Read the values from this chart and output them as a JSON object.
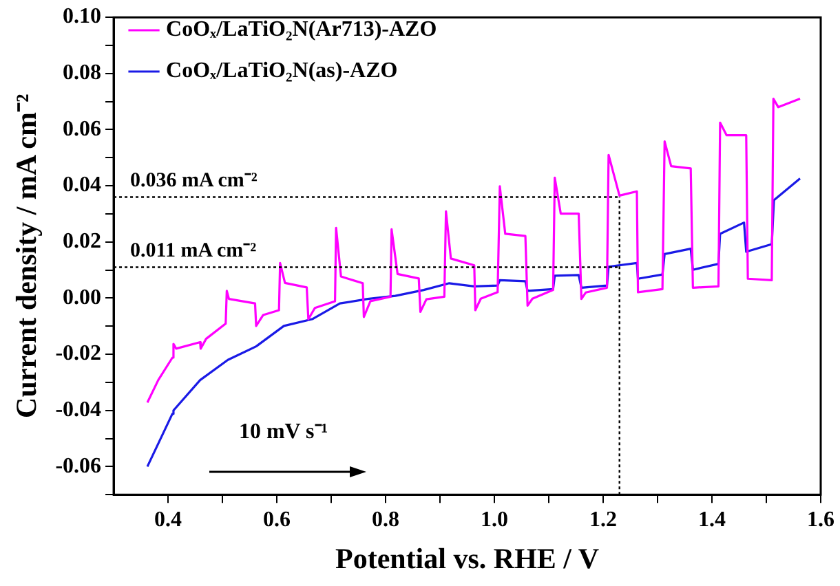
{
  "chart_data": {
    "type": "line",
    "xlabel": "Potential vs. RHE / V",
    "ylabel": "Current density / mA cm⁻²",
    "xlim": [
      0.3,
      1.6
    ],
    "ylim": [
      -0.07,
      0.1
    ],
    "xticks": [
      {
        "value": 0.4,
        "label": "0.4"
      },
      {
        "value": 0.5,
        "label": null
      },
      {
        "value": 0.6,
        "label": "0.6"
      },
      {
        "value": 0.7,
        "label": null
      },
      {
        "value": 0.8,
        "label": "0.8"
      },
      {
        "value": 0.9,
        "label": null
      },
      {
        "value": 1.0,
        "label": "1.0"
      },
      {
        "value": 1.1,
        "label": null
      },
      {
        "value": 1.2,
        "label": "1.2"
      },
      {
        "value": 1.3,
        "label": null
      },
      {
        "value": 1.4,
        "label": "1.4"
      },
      {
        "value": 1.5,
        "label": null
      },
      {
        "value": 1.6,
        "label": "1.6"
      }
    ],
    "yticks": [
      {
        "value": -0.07,
        "label": null
      },
      {
        "value": -0.06,
        "label": "-0.06"
      },
      {
        "value": -0.05,
        "label": null
      },
      {
        "value": -0.04,
        "label": "-0.04"
      },
      {
        "value": -0.03,
        "label": null
      },
      {
        "value": -0.02,
        "label": "-0.02"
      },
      {
        "value": -0.01,
        "label": null
      },
      {
        "value": 0,
        "label": "0.00"
      },
      {
        "value": 0.01,
        "label": null
      },
      {
        "value": 0.02,
        "label": "0.02"
      },
      {
        "value": 0.03,
        "label": null
      },
      {
        "value": 0.04,
        "label": "0.04"
      },
      {
        "value": 0.05,
        "label": null
      },
      {
        "value": 0.06,
        "label": "0.06"
      },
      {
        "value": 0.07,
        "label": null
      },
      {
        "value": 0.08,
        "label": "0.08"
      },
      {
        "value": 0.09,
        "label": null
      },
      {
        "value": 0.1,
        "label": "0.10"
      }
    ],
    "grid": false,
    "legend": "top left",
    "line_style": "solid",
    "series": [
      {
        "name": "CoOₓ/LaTiO₂N(Ar713)-AZO",
        "color": "#ff00ff",
        "x": [
          0.362,
          0.382,
          0.408,
          0.41,
          0.415,
          0.459,
          0.46,
          0.47,
          0.506,
          0.508,
          0.512,
          0.56,
          0.562,
          0.575,
          0.604,
          0.606,
          0.615,
          0.655,
          0.658,
          0.67,
          0.707,
          0.709,
          0.718,
          0.758,
          0.76,
          0.772,
          0.809,
          0.811,
          0.822,
          0.861,
          0.864,
          0.875,
          0.908,
          0.911,
          0.92,
          0.963,
          0.965,
          0.975,
          1.006,
          1.01,
          1.02,
          1.057,
          1.061,
          1.07,
          1.108,
          1.111,
          1.122,
          1.155,
          1.16,
          1.168,
          1.207,
          1.21,
          1.23,
          1.262,
          1.264,
          1.309,
          1.313,
          1.325,
          1.361,
          1.365,
          1.412,
          1.415,
          1.427,
          1.463,
          1.466,
          1.51,
          1.513,
          1.522,
          1.562
        ],
        "values": [
          -0.0372,
          -0.0292,
          -0.0212,
          -0.0163,
          -0.018,
          -0.0157,
          -0.018,
          -0.0145,
          -0.0091,
          0.0026,
          -0.0003,
          -0.0019,
          -0.0099,
          -0.006,
          -0.0043,
          0.0125,
          0.0054,
          0.0038,
          -0.0075,
          -0.0035,
          -0.0011,
          0.025,
          0.0077,
          0.0053,
          -0.0067,
          -0.0011,
          0.0005,
          0.0245,
          0.0086,
          0.007,
          -0.0049,
          -0.0004,
          0.0005,
          0.0309,
          0.0141,
          0.0117,
          -0.0043,
          -0.0002,
          0.0021,
          0.0398,
          0.0229,
          0.0221,
          -0.0027,
          -0.0002,
          0.0029,
          0.0429,
          0.0301,
          0.0301,
          -0.0003,
          0.002,
          0.0037,
          0.051,
          0.0365,
          0.038,
          0.0021,
          0.0032,
          0.0558,
          0.047,
          0.0462,
          0.0037,
          0.0042,
          0.0625,
          0.058,
          0.058,
          0.0069,
          0.0064,
          0.071,
          0.068,
          0.071
        ]
      },
      {
        "name": "CoOₓ/LaTiO₂N(as)-AZO",
        "color": "#1a1ae6",
        "x": [
          0.362,
          0.408,
          0.41,
          0.459,
          0.51,
          0.562,
          0.613,
          0.665,
          0.716,
          0.767,
          0.818,
          0.87,
          0.917,
          0.963,
          1.006,
          1.01,
          1.057,
          1.061,
          1.108,
          1.111,
          1.155,
          1.16,
          1.207,
          1.21,
          1.262,
          1.264,
          1.309,
          1.313,
          1.361,
          1.365,
          1.412,
          1.415,
          1.459,
          1.463,
          1.51,
          1.514,
          1.562
        ],
        "values": [
          -0.06,
          -0.0412,
          -0.04,
          -0.0292,
          -0.022,
          -0.0172,
          -0.0099,
          -0.0075,
          -0.0019,
          -0.0003,
          0.0008,
          0.0029,
          0.0053,
          0.0042,
          0.0045,
          0.0064,
          0.006,
          0.0026,
          0.0032,
          0.008,
          0.0082,
          0.0037,
          0.0045,
          0.0112,
          0.0125,
          0.0069,
          0.0084,
          0.0157,
          0.0176,
          0.0101,
          0.0122,
          0.0229,
          0.0269,
          0.0165,
          0.0192,
          0.0349,
          0.0426
        ]
      }
    ],
    "ref_lines": [
      {
        "axis": "y",
        "value": 0.036,
        "label": "0.036 mA cm⁻²",
        "line_style": "dotted",
        "color": "#000000"
      },
      {
        "axis": "y",
        "value": 0.011,
        "label": "0.011 mA cm⁻²",
        "line_style": "dotted",
        "color": "#000000"
      },
      {
        "axis": "x",
        "value": 1.23,
        "label": null,
        "line_style": "dotted",
        "color": "#000000"
      }
    ],
    "annotations": [
      "10 mV s⁻¹"
    ]
  }
}
